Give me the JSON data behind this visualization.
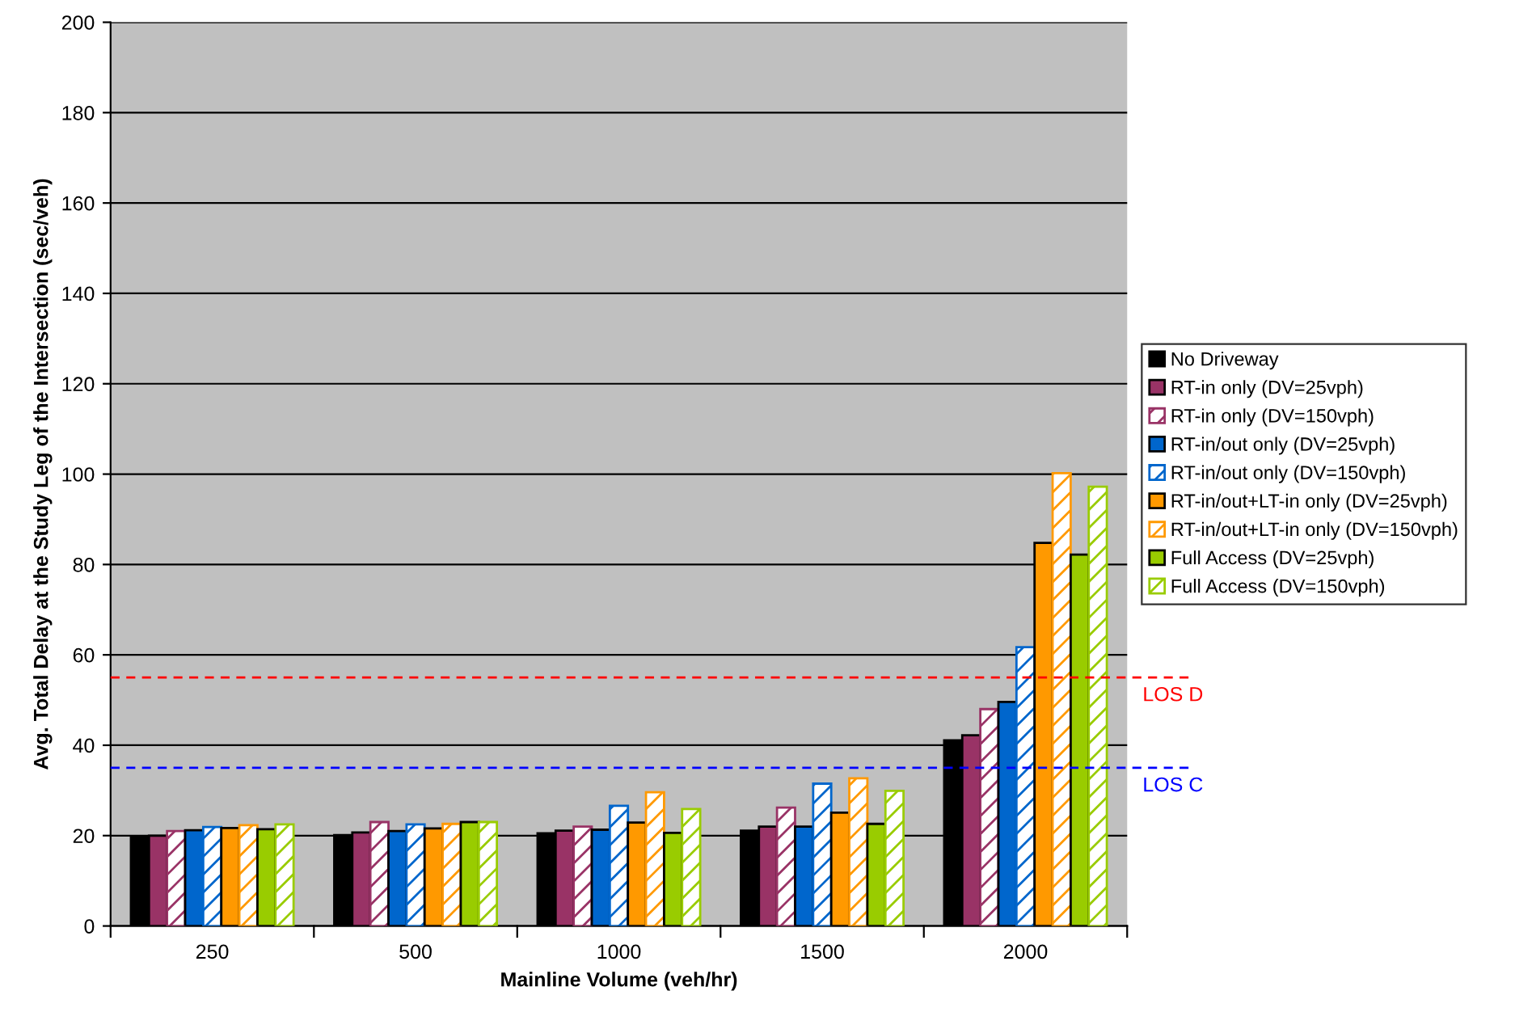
{
  "chart_data": {
    "type": "bar",
    "xlabel": "Mainline Volume (veh/hr)",
    "ylabel": "Avg. Total Delay at the Study Leg of the Intersection (sec/veh)",
    "categories": [
      "250",
      "500",
      "1000",
      "1500",
      "2000"
    ],
    "series": [
      {
        "name": "No Driveway",
        "color": "#000000",
        "values": [
          19.8,
          20.1,
          20.5,
          21.1,
          41.1
        ]
      },
      {
        "name": "RT-in only (DV=25vph)",
        "color": "#993366",
        "values": [
          20.0,
          20.7,
          21.1,
          22.0,
          42.2
        ]
      },
      {
        "name": "RT-in only (DV=150vph)",
        "color": "#993366",
        "values": [
          21.0,
          23.0,
          22.0,
          26.2,
          48.0
        ]
      },
      {
        "name": "RT-in/out only (DV=25vph)",
        "color": "#0066cc",
        "values": [
          21.2,
          21.0,
          21.3,
          22.0,
          49.6
        ]
      },
      {
        "name": "RT-in/out only (DV=150vph)",
        "color": "#0066cc",
        "values": [
          21.9,
          22.5,
          26.6,
          31.5,
          61.7
        ]
      },
      {
        "name": "RT-in/out+LT-in only (DV=25vph)",
        "color": "#ff9900",
        "values": [
          21.7,
          21.6,
          22.9,
          25.1,
          84.8
        ]
      },
      {
        "name": "RT-in/out+LT-in only (DV=150vph)",
        "color": "#ff9900",
        "values": [
          22.3,
          22.6,
          29.6,
          32.7,
          100.2
        ]
      },
      {
        "name": "Full Access (DV=25vph)",
        "color": "#99cc00",
        "values": [
          21.4,
          23.0,
          20.6,
          22.6,
          82.2
        ]
      },
      {
        "name": "Full Access (DV=150vph)",
        "color": "#99cc00",
        "values": [
          22.5,
          23.0,
          25.9,
          29.9,
          97.2
        ]
      }
    ],
    "ylim": [
      0,
      200
    ],
    "yticks": [
      0,
      20,
      40,
      60,
      80,
      100,
      120,
      140,
      160,
      180,
      200
    ],
    "grid": "y",
    "legend": "right",
    "ref_lines": [
      {
        "axis": "y",
        "value": 55,
        "label": "LOS D",
        "color": "#ff0000",
        "line_style": "dashed"
      },
      {
        "axis": "y",
        "value": 35,
        "label": "LOS C",
        "color": "#0000ff",
        "line_style": "dashed"
      }
    ]
  }
}
